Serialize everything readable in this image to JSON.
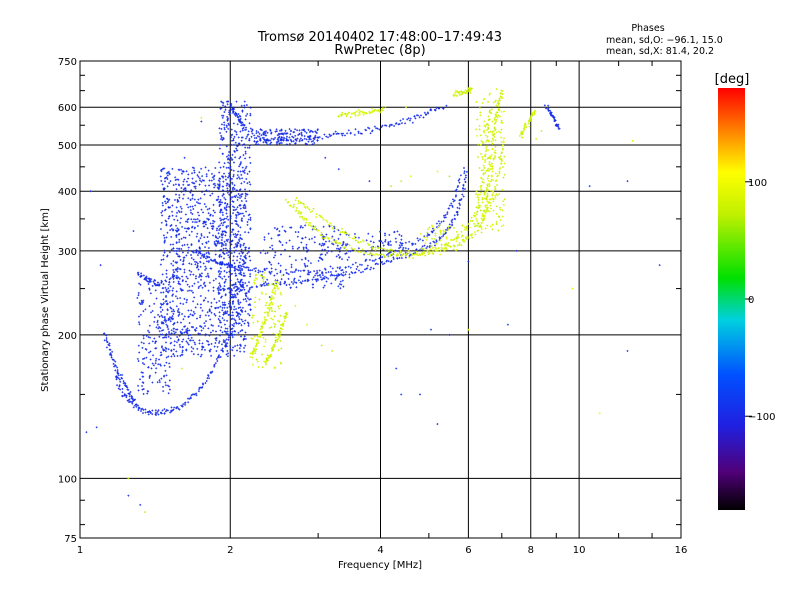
{
  "chart_data": {
    "type": "scatter",
    "title": "Tromsø 20140402 17:48:00–17:49:43",
    "subtitle": "RwPretec (8p)",
    "xlabel": "Frequency [MHz]",
    "ylabel": "Stationary phase Virtual Height [km]",
    "x_scale": "log2",
    "y_scale": "log",
    "xlim": [
      1,
      16
    ],
    "ylim": [
      75,
      750
    ],
    "x_ticks": [
      "1",
      "2",
      "4",
      "6",
      "8",
      "10",
      "16"
    ],
    "x_tick_values": [
      1,
      2,
      4,
      6,
      8,
      10,
      16
    ],
    "y_ticks": [
      "75",
      "100",
      "200",
      "300",
      "400",
      "500",
      "600",
      "750"
    ],
    "y_tick_values": [
      75,
      100,
      200,
      300,
      400,
      500,
      600,
      750
    ],
    "grid": true,
    "stats_header": "Phases",
    "stats_lines": [
      "mean, sd,O: −96.1, 15.0",
      "mean, sd,X:  81.4, 20.2"
    ],
    "colorbar": {
      "unit_label": "[deg]",
      "range": [
        -180,
        180
      ],
      "ticks": [
        "100",
        "0",
        "−100"
      ],
      "tick_values": [
        100,
        0,
        -100
      ]
    },
    "series": [
      {
        "mode": "O",
        "phase_deg": -96,
        "traces": [
          {
            "x": [
              1.18,
              1.22,
              1.28,
              1.35,
              1.42,
              1.5,
              1.6,
              1.7,
              1.8,
              1.9,
              2.0,
              2.1
            ],
            "y": [
              165,
              150,
              142,
              138,
              137,
              138,
              142,
              150,
              162,
              180,
              200,
              230
            ]
          },
          {
            "x": [
              1.12,
              1.15,
              1.18,
              1.22,
              1.26,
              1.3
            ],
            "y": [
              200,
              185,
              170,
              160,
              150,
              142
            ]
          },
          {
            "x": [
              1.9,
              2.1,
              2.4,
              2.8,
              3.2,
              3.6,
              4.0,
              4.4,
              4.8,
              5.2,
              5.5,
              5.7,
              5.85,
              5.95
            ],
            "y": [
              250,
              252,
              255,
              260,
              266,
              272,
              280,
              290,
              300,
              315,
              335,
              360,
              400,
              450
            ]
          },
          {
            "x": [
              1.7,
              1.8,
              1.9,
              2.0,
              2.1,
              2.3,
              2.6,
              3.0,
              3.5,
              4.0,
              4.5,
              5.0,
              5.3,
              5.6,
              5.8
            ],
            "y": [
              300,
              290,
              282,
              278,
              275,
              272,
              270,
              272,
              278,
              290,
              305,
              325,
              345,
              380,
              430
            ]
          },
          {
            "x": [
              2.3,
              2.5,
              2.8,
              3.1,
              3.4,
              3.8,
              4.2,
              4.6,
              5.0,
              5.4
            ],
            "y": [
              510,
              512,
              515,
              520,
              527,
              537,
              550,
              565,
              585,
              605
            ]
          },
          {
            "x": [
              2.0,
              2.05,
              2.1,
              2.15
            ],
            "y": [
              600,
              580,
              560,
              540
            ]
          },
          {
            "x": [
              1.3,
              1.35,
              1.4,
              1.45
            ],
            "y": [
              270,
              262,
              258,
              255
            ]
          },
          {
            "x": [
              8.6,
              8.8,
              9.0,
              9.1
            ],
            "y": [
              600,
              580,
              560,
              540
            ]
          }
        ],
        "clusters": [
          {
            "x": [
              1.45,
              2.15
            ],
            "y": [
              180,
              450
            ],
            "n": 1100
          },
          {
            "x": [
              1.9,
              2.2
            ],
            "y": [
              200,
              620
            ],
            "n": 450
          },
          {
            "x": [
              1.3,
              1.55
            ],
            "y": [
              150,
              260
            ],
            "n": 180
          },
          {
            "x": [
              2.2,
              3.0
            ],
            "y": [
              500,
              540
            ],
            "n": 160
          },
          {
            "x": [
              2.3,
              3.5
            ],
            "y": [
              250,
              340
            ],
            "n": 200
          },
          {
            "x": [
              3.0,
              4.5
            ],
            "y": [
              290,
              330
            ],
            "n": 90
          }
        ],
        "scatter": [
          [
            1.05,
            400
          ],
          [
            1.1,
            280
          ],
          [
            1.28,
            330
          ],
          [
            1.5,
            380
          ],
          [
            1.62,
            470
          ],
          [
            1.75,
            560
          ],
          [
            2.4,
            240
          ],
          [
            3.1,
            470
          ],
          [
            3.3,
            445
          ],
          [
            3.8,
            420
          ],
          [
            4.4,
            150
          ],
          [
            4.3,
            170
          ],
          [
            4.8,
            150
          ],
          [
            5.5,
            200
          ],
          [
            6.0,
            285
          ],
          [
            7.2,
            210
          ],
          [
            7.5,
            300
          ],
          [
            10.5,
            410
          ],
          [
            12.5,
            420
          ],
          [
            14.5,
            280
          ],
          [
            12.5,
            185
          ],
          [
            1.03,
            125
          ],
          [
            1.08,
            128
          ],
          [
            1.25,
            92
          ],
          [
            1.32,
            88
          ],
          [
            1.4,
            75
          ],
          [
            5.2,
            130
          ],
          [
            5.05,
            205
          ]
        ]
      },
      {
        "mode": "X",
        "phase_deg": 81,
        "traces": [
          {
            "x": [
              2.7,
              2.9,
              3.2,
              3.5,
              3.9,
              4.3,
              4.8,
              5.3,
              5.8,
              6.2,
              6.5,
              6.75,
              6.95,
              7.05
            ],
            "y": [
              385,
              365,
              340,
              320,
              305,
              298,
              296,
              300,
              312,
              330,
              360,
              400,
              460,
              520
            ]
          },
          {
            "x": [
              2.6,
              2.75,
              2.9,
              3.1,
              3.4,
              3.8,
              4.2,
              4.8,
              5.3,
              5.8,
              6.2,
              6.6,
              6.8
            ],
            "y": [
              380,
              360,
              340,
              320,
              305,
              295,
              292,
              295,
              305,
              325,
              355,
              410,
              480
            ]
          },
          {
            "x": [
              6.35,
              6.5,
              6.6,
              6.7,
              6.8,
              6.9,
              7.0
            ],
            "y": [
              330,
              380,
              440,
              500,
              560,
              610,
              650
            ]
          },
          {
            "x": [
              6.2,
              6.3,
              6.45,
              6.55,
              6.65
            ],
            "y": [
              340,
              390,
              450,
              520,
              600
            ]
          },
          {
            "x": [
              2.2,
              2.25,
              2.3,
              2.35,
              2.4,
              2.45,
              2.5
            ],
            "y": [
              180,
              190,
              200,
              215,
              230,
              245,
              260
            ]
          },
          {
            "x": [
              2.35,
              2.4,
              2.45,
              2.5,
              2.55,
              2.6
            ],
            "y": [
              175,
              180,
              190,
              200,
              210,
              225
            ]
          },
          {
            "x": [
              3.3,
              3.5,
              3.7,
              3.9,
              4.1
            ],
            "y": [
              575,
              580,
              585,
              590,
              595
            ]
          },
          {
            "x": [
              7.6,
              7.8,
              8.0,
              8.2
            ],
            "y": [
              520,
              545,
              570,
              590
            ]
          },
          {
            "x": [
              5.6,
              5.8,
              6.0,
              6.1
            ],
            "y": [
              640,
              645,
              650,
              655
            ]
          }
        ],
        "clusters": [
          {
            "x": [
              2.2,
              2.55
            ],
            "y": [
              170,
              270
            ],
            "n": 90
          },
          {
            "x": [
              6.2,
              7.1
            ],
            "y": [
              330,
              660
            ],
            "n": 160
          },
          {
            "x": [
              4.8,
              6.0
            ],
            "y": [
              300,
              340
            ],
            "n": 60
          }
        ],
        "scatter": [
          [
            1.25,
            100
          ],
          [
            1.35,
            85
          ],
          [
            1.75,
            570
          ],
          [
            2.7,
            230
          ],
          [
            2.85,
            210
          ],
          [
            3.05,
            190
          ],
          [
            3.2,
            185
          ],
          [
            4.2,
            410
          ],
          [
            4.4,
            420
          ],
          [
            4.6,
            430
          ],
          [
            5.2,
            440
          ],
          [
            5.5,
            430
          ],
          [
            8.2,
            515
          ],
          [
            8.4,
            535
          ],
          [
            9.7,
            250
          ],
          [
            11.0,
            137
          ],
          [
            12.8,
            510
          ],
          [
            1.6,
            170
          ],
          [
            6.0,
            205
          ],
          [
            4.5,
            600
          ]
        ]
      }
    ]
  }
}
